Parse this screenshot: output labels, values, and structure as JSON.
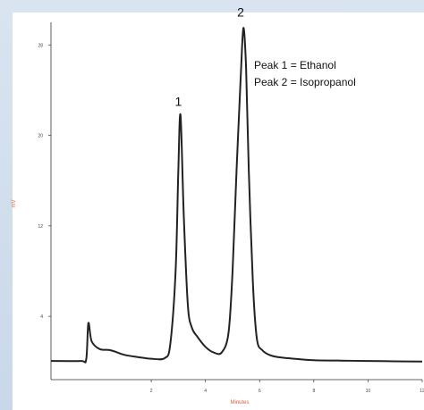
{
  "chart_data": {
    "type": "line",
    "title": "",
    "xlabel": "Minutes",
    "ylabel": "mV",
    "xlim": [
      -1.7,
      12
    ],
    "ylim": [
      -1.6,
      30
    ],
    "x_ticks": [
      {
        "value": 2,
        "label": "2"
      },
      {
        "value": 4,
        "label": "4"
      },
      {
        "value": 6,
        "label": "6"
      },
      {
        "value": 8,
        "label": "8"
      },
      {
        "value": 10,
        "label": "10"
      },
      {
        "value": 12,
        "label": "12"
      }
    ],
    "y_ticks": [
      {
        "value": 4,
        "label": "4"
      },
      {
        "value": 12,
        "label": "12"
      },
      {
        "value": 20,
        "label": "20"
      },
      {
        "value": 28,
        "label": "28"
      }
    ],
    "series": [
      {
        "x": [
          -1.7,
          -0.6,
          -0.4,
          -0.32,
          -0.2,
          0.1,
          0.5,
          1.0,
          1.5,
          2.0,
          2.5,
          2.7,
          2.9,
          3.0,
          3.08,
          3.2,
          3.35,
          3.5,
          3.7,
          4.0,
          4.3,
          4.6,
          4.85,
          5.0,
          5.15,
          5.3,
          5.4,
          5.5,
          5.6,
          5.75,
          5.9,
          6.1,
          6.4,
          6.8,
          7.5,
          8.0,
          9.0,
          10.0,
          11.0,
          12.0
        ],
        "y": [
          0.05,
          0.05,
          0.2,
          3.4,
          1.8,
          1.1,
          1.0,
          0.6,
          0.4,
          0.25,
          0.3,
          1.5,
          8.0,
          17.0,
          21.8,
          13.0,
          5.0,
          3.0,
          2.2,
          1.3,
          0.8,
          0.8,
          2.5,
          8.0,
          17.0,
          25.0,
          29.5,
          26.0,
          17.0,
          7.0,
          2.0,
          1.0,
          0.55,
          0.35,
          0.2,
          0.12,
          0.08,
          0.05,
          0.02,
          0.0
        ]
      }
    ],
    "annotations": [
      {
        "text": "1",
        "x": 3.0,
        "y": 22.6
      },
      {
        "text": "2",
        "x": 5.3,
        "y": 30.5
      }
    ],
    "legend_lines": [
      "Peak 1 = Ethanol",
      "Peak 2 = Isopropanol"
    ],
    "colors": {
      "line": "#222222",
      "axis_title": "#e0613a",
      "background": "#ffffff"
    }
  }
}
